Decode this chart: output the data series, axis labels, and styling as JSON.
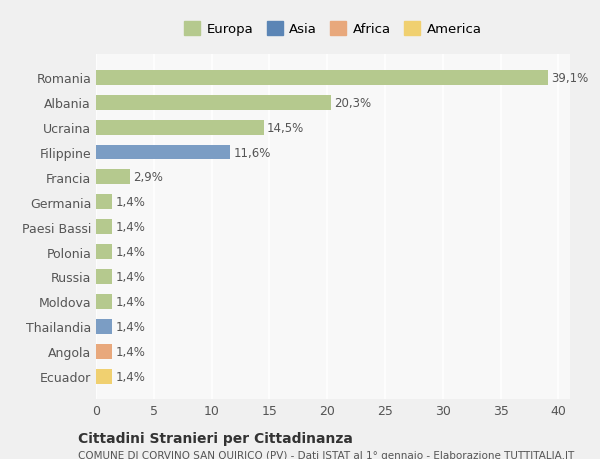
{
  "categories": [
    "Romania",
    "Albania",
    "Ucraina",
    "Filippine",
    "Francia",
    "Germania",
    "Paesi Bassi",
    "Polonia",
    "Russia",
    "Moldova",
    "Thailandia",
    "Angola",
    "Ecuador"
  ],
  "values": [
    39.1,
    20.3,
    14.5,
    11.6,
    2.9,
    1.4,
    1.4,
    1.4,
    1.4,
    1.4,
    1.4,
    1.4,
    1.4
  ],
  "labels": [
    "39,1%",
    "20,3%",
    "14,5%",
    "11,6%",
    "2,9%",
    "1,4%",
    "1,4%",
    "1,4%",
    "1,4%",
    "1,4%",
    "1,4%",
    "1,4%",
    "1,4%"
  ],
  "colors": [
    "#b5c98e",
    "#b5c98e",
    "#b5c98e",
    "#7b9dc4",
    "#b5c98e",
    "#b5c98e",
    "#b5c98e",
    "#b5c98e",
    "#b5c98e",
    "#b5c98e",
    "#7b9dc4",
    "#e8a87c",
    "#f0d070"
  ],
  "legend": {
    "Europa": "#b5c98e",
    "Asia": "#5b85b5",
    "Africa": "#e8a87c",
    "America": "#f0d070"
  },
  "title": "Cittadini Stranieri per Cittadinanza",
  "subtitle": "COMUNE DI CORVINO SAN QUIRICO (PV) - Dati ISTAT al 1° gennaio - Elaborazione TUTTITALIA.IT",
  "xlim": [
    0,
    41
  ],
  "xticks": [
    0,
    5,
    10,
    15,
    20,
    25,
    30,
    35,
    40
  ],
  "background_color": "#f0f0f0",
  "plot_background": "#f8f8f8",
  "grid_color": "#ffffff",
  "bar_height": 0.6
}
